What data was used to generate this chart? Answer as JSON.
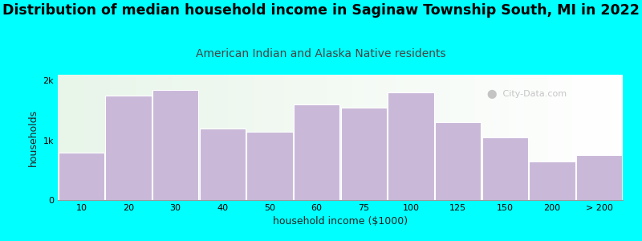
{
  "title": "Distribution of median household income in Saginaw Township South, MI in 2022",
  "subtitle": "American Indian and Alaska Native residents",
  "xlabel": "household income ($1000)",
  "ylabel": "households",
  "bar_labels": [
    "10",
    "20",
    "30",
    "40",
    "50",
    "60",
    "75",
    "100",
    "125",
    "150",
    "200",
    "> 200"
  ],
  "bar_values": [
    800,
    1750,
    1850,
    1200,
    1150,
    1600,
    1550,
    1800,
    1300,
    1050,
    650,
    750
  ],
  "bar_color": "#c9b8d8",
  "bar_edgecolor": "#ffffff",
  "background_color": "#00ffff",
  "plot_bg_left": "#e8f5e9",
  "plot_bg_right": "#f0fff0",
  "yticks": [
    0,
    1000,
    2000
  ],
  "ytick_labels": [
    "0",
    "1k",
    "2k"
  ],
  "ylim": [
    0,
    2100
  ],
  "title_fontsize": 12.5,
  "subtitle_fontsize": 10,
  "subtitle_color": "#444444",
  "axis_label_fontsize": 9,
  "tick_fontsize": 8,
  "watermark": "City-Data.com"
}
